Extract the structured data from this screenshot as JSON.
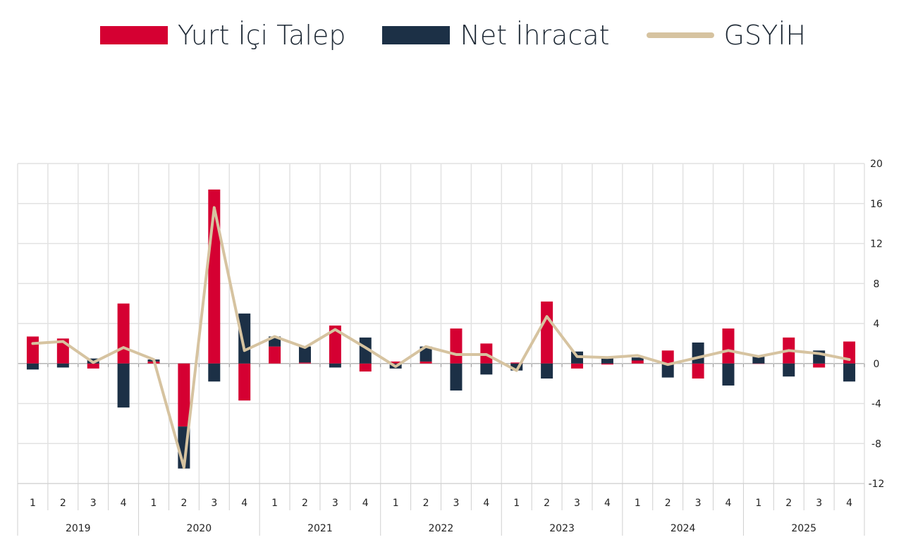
{
  "legend": [
    {
      "label": "Yurt İçi Talep",
      "color": "#d50032"
    },
    {
      "label": "Net İhracat",
      "color": "#1c3046"
    },
    {
      "label": "GSYİH",
      "color": "#d6c3a0"
    }
  ],
  "chart_data": {
    "type": "bar",
    "stacked": true,
    "years": [
      "2019",
      "2020",
      "2021",
      "2022",
      "2023",
      "2024",
      "2025"
    ],
    "categories": [
      "1",
      "2",
      "3",
      "4",
      "1",
      "2",
      "3",
      "4",
      "1",
      "2",
      "3",
      "4",
      "1",
      "2",
      "3",
      "4",
      "1",
      "2",
      "3",
      "4",
      "1",
      "2",
      "3",
      "4",
      "1",
      "2",
      "3",
      "4"
    ],
    "series": [
      {
        "name": "Yurt İçi Talep",
        "type": "bar",
        "color": "#d50032",
        "values": [
          2.7,
          2.5,
          -0.5,
          6.0,
          0.2,
          -6.3,
          17.4,
          -3.7,
          1.7,
          0.1,
          3.8,
          -0.8,
          0.2,
          0.2,
          3.5,
          2.0,
          0.1,
          6.2,
          -0.5,
          -0.1,
          0.3,
          1.3,
          -1.5,
          3.5,
          0.0,
          2.6,
          -0.4,
          2.2
        ]
      },
      {
        "name": "Net İhracat",
        "type": "bar",
        "color": "#1c3046",
        "values": [
          -0.6,
          -0.4,
          0.5,
          -4.4,
          0.2,
          -4.2,
          -1.8,
          5.0,
          1.0,
          1.6,
          -0.4,
          2.6,
          -0.5,
          1.5,
          -2.7,
          -1.1,
          -0.7,
          -1.5,
          1.2,
          0.6,
          0.3,
          -1.4,
          2.1,
          -2.2,
          0.7,
          -1.3,
          1.3,
          -1.8
        ]
      },
      {
        "name": "GSYİH",
        "type": "line",
        "color": "#d6c3a0",
        "values": [
          2.0,
          2.2,
          0.1,
          1.6,
          0.4,
          -10.4,
          15.6,
          1.3,
          2.7,
          1.6,
          3.4,
          1.6,
          -0.3,
          1.7,
          0.9,
          0.9,
          -0.7,
          4.7,
          0.7,
          0.6,
          0.8,
          -0.1,
          0.6,
          1.3,
          0.7,
          1.3,
          1.0,
          0.4
        ]
      }
    ],
    "y_ticks": [
      "20",
      "16",
      "12",
      "8",
      "4",
      "0",
      "-4",
      "-8",
      "-12"
    ],
    "ylim": [
      -12,
      20
    ],
    "yaxis_position": "right",
    "grid": true,
    "legend_position": "top"
  }
}
